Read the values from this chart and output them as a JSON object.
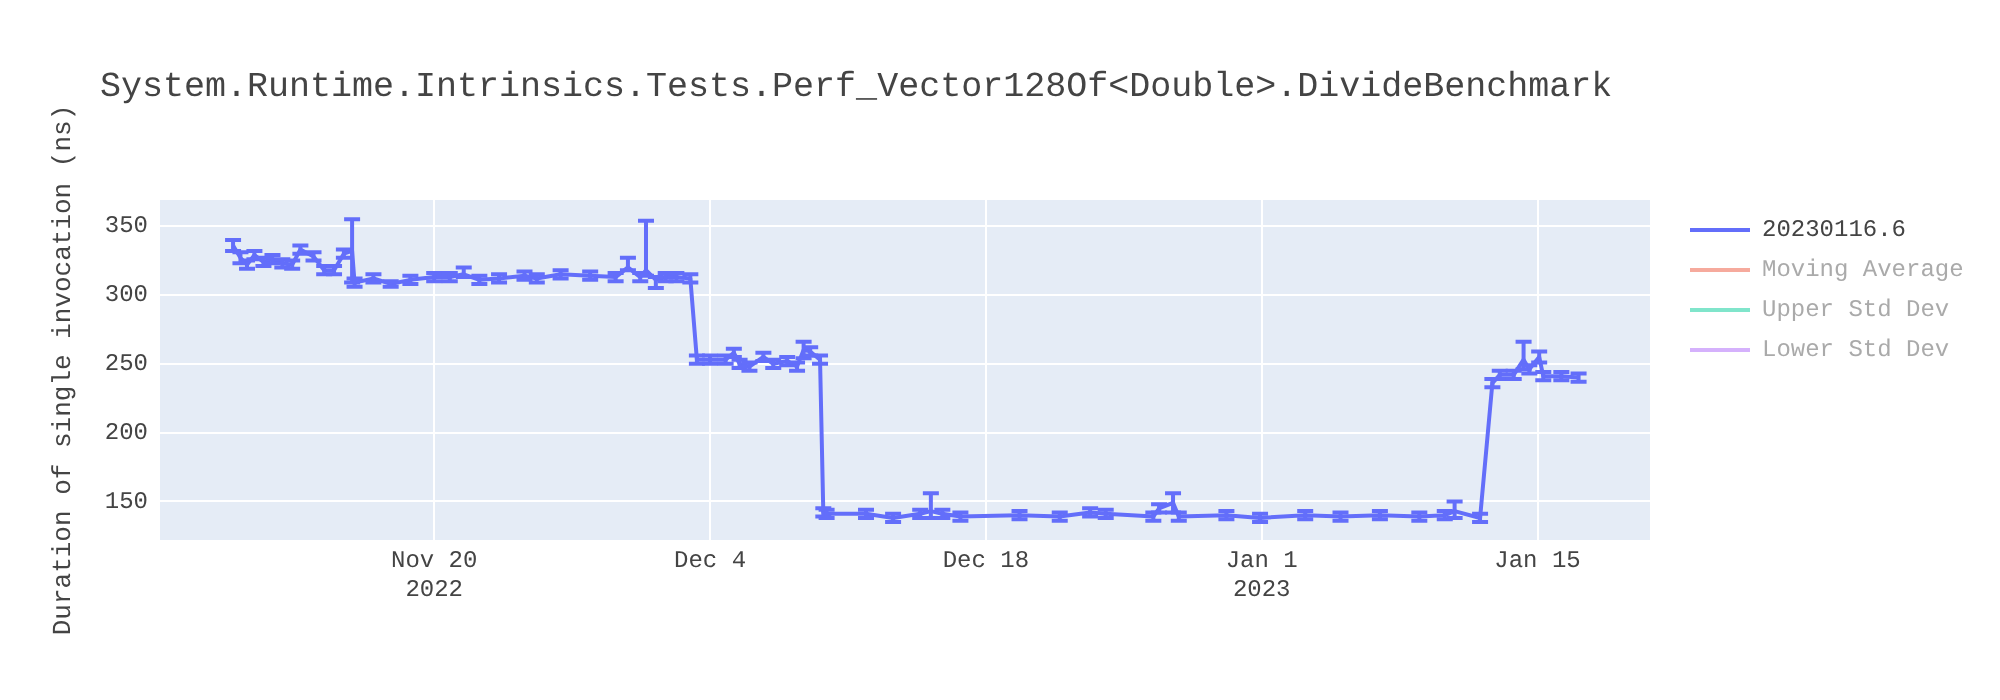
{
  "chart_data": {
    "type": "line",
    "title": "System.Runtime.Intrinsics.Tests.Perf_Vector128Of<Double>.DivideBenchmark",
    "ylabel": "Duration of single invocation (ns)",
    "xlim": [
      "2022-11-06T02:00",
      "2023-01-20T17:00"
    ],
    "xticks": [
      {
        "value": "2022-11-20",
        "label": "Nov 20\n2022"
      },
      {
        "value": "2022-12-04",
        "label": "Dec 4"
      },
      {
        "value": "2022-12-18",
        "label": "Dec 18"
      },
      {
        "value": "2023-01-01",
        "label": "Jan 1\n2023"
      },
      {
        "value": "2023-01-15",
        "label": "Jan 15"
      }
    ],
    "ylim": [
      122,
      369
    ],
    "yticks": [
      150,
      200,
      250,
      300,
      350
    ],
    "grid": true,
    "legend": "right",
    "marker": "none",
    "line_style": "solid",
    "series": [
      {
        "name": "20230116.6",
        "color": "#636efa",
        "x": [
          "2022-11-09T19:00",
          "2022-11-10T04:00",
          "2022-11-10T12:00",
          "2022-11-10T21:00",
          "2022-11-11T08:00",
          "2022-11-11T19:00",
          "2022-11-12T07:00",
          "2022-11-12T19:00",
          "2022-11-13T05:00",
          "2022-11-13T21:00",
          "2022-11-14T10:00",
          "2022-11-14T22:00",
          "2022-11-15T10:00",
          "2022-11-15T20:00",
          "2022-11-15T23:00",
          "2022-11-16T22:00",
          "2022-11-17T19:00",
          "2022-11-18T19:00",
          "2022-11-20T00:00",
          "2022-11-20T19:00",
          "2022-11-21T12:00",
          "2022-11-22T07:00",
          "2022-11-23T07:00",
          "2022-11-24T14:00",
          "2022-11-25T05:00",
          "2022-11-26T10:00",
          "2022-11-27T22:00",
          "2022-11-29T05:00",
          "2022-11-29T20:00",
          "2022-11-30T11:00",
          "2022-11-30T18:00",
          "2022-12-01T06:00",
          "2022-12-01T18:00",
          "2022-12-02T07:00",
          "2022-12-03T00:00",
          "2022-12-03T08:00",
          "2022-12-04T00:00",
          "2022-12-04T19:00",
          "2022-12-05T05:00",
          "2022-12-05T12:00",
          "2022-12-06T00:00",
          "2022-12-06T17:00",
          "2022-12-07T05:00",
          "2022-12-07T22:00",
          "2022-12-08T10:00",
          "2022-12-08T18:00",
          "2022-12-09T02:00",
          "2022-12-09T14:00",
          "2022-12-09T18:00",
          "2022-12-09T22:00",
          "2022-12-11T22:00",
          "2022-12-13T07:00",
          "2022-12-14T16:00",
          "2022-12-15T05:00",
          "2022-12-15T19:00",
          "2022-12-16T17:00",
          "2022-12-19T17:00",
          "2022-12-21T18:00",
          "2022-12-23T07:00",
          "2022-12-24T02:00",
          "2022-12-26T12:00",
          "2022-12-26T19:00",
          "2022-12-27T12:00",
          "2022-12-27T19:00",
          "2022-12-30T05:00",
          "2022-12-31T22:00",
          "2023-01-03T05:00",
          "2023-01-05T00:00",
          "2023-01-07T00:00",
          "2023-01-09T00:00",
          "2023-01-10T07:00",
          "2023-01-10T19:00",
          "2023-01-12T02:00",
          "2023-01-12T17:00",
          "2023-01-13T02:00",
          "2023-01-13T19:00",
          "2023-01-14T07:00",
          "2023-01-14T14:00",
          "2023-01-15T02:00",
          "2023-01-15T07:00",
          "2023-01-16T05:00",
          "2023-01-17T02:00"
        ],
        "values": [
          336,
          327,
          322,
          329,
          324,
          326,
          323,
          322,
          333,
          328,
          318,
          318,
          330,
          332,
          309,
          312,
          308,
          311,
          313,
          313,
          315,
          311,
          312,
          314,
          312,
          315,
          314,
          313,
          320,
          313,
          318,
          311,
          313,
          313,
          312,
          253,
          253,
          253,
          258,
          250,
          248,
          255,
          250,
          252,
          248,
          260,
          259,
          253,
          142,
          141,
          141,
          138,
          141,
          143,
          141,
          139,
          140,
          139,
          142,
          141,
          139,
          145,
          149,
          139,
          140,
          138,
          140,
          139,
          140,
          139,
          140,
          143,
          138,
          236,
          242,
          242,
          253,
          246,
          255,
          241,
          241,
          240
        ],
        "errors": [
          4,
          4,
          3,
          3,
          3,
          3,
          3,
          3,
          3,
          3,
          3,
          3,
          3,
          [
            309,
            355
          ],
          3,
          3,
          2,
          3,
          3,
          3,
          [
            313,
            320
          ],
          3,
          3,
          3,
          3,
          3,
          3,
          3,
          [
            318,
            327
          ],
          3,
          [
            314,
            354
          ],
          [
            305,
            313
          ],
          3,
          3,
          3,
          3,
          3,
          3,
          3,
          3,
          3,
          3,
          3,
          3,
          3,
          [
            254,
            266
          ],
          3,
          3,
          3,
          3,
          3,
          3,
          3,
          [
            138,
            156
          ],
          3,
          3,
          3,
          3,
          3,
          3,
          3,
          3,
          [
            142,
            156
          ],
          3,
          3,
          3,
          3,
          3,
          3,
          3,
          3,
          [
            138,
            150
          ],
          3,
          3,
          3,
          3,
          [
            246,
            266
          ],
          3,
          [
            251,
            259
          ],
          3,
          3,
          3
        ]
      },
      {
        "name": "Moving Average",
        "color": "#f6aa9d"
      },
      {
        "name": "Upper Std Dev",
        "color": "#80e5cb"
      },
      {
        "name": "Lower Std Dev",
        "color": "#d5b1fc"
      }
    ]
  }
}
